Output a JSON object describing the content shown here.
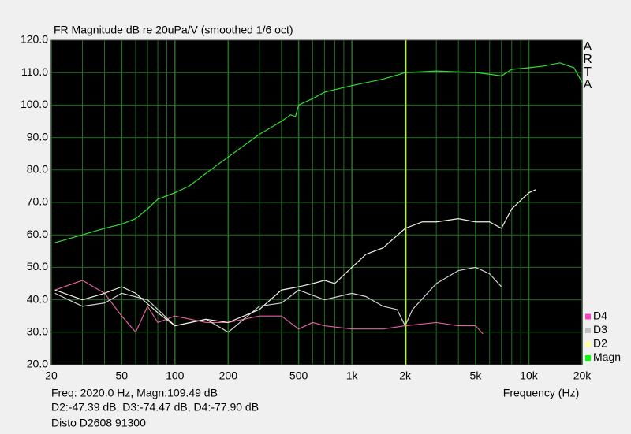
{
  "chart_data": {
    "type": "line",
    "title": "FR Magnitude dB re 20uPa/V (smoothed 1/6 oct)",
    "x_label": "Frequency (Hz)",
    "brand": "ARTA",
    "readout": [
      "Freq: 2020.0 Hz, Magn:109.49 dB",
      "D2:-47.39 dB, D3:-74.47 dB, D4:-77.90 dB",
      "Disto D2608 91300"
    ],
    "cursor": 2020,
    "cursor_color": "#c8e64a",
    "log_x": true,
    "grid": true,
    "grid_color": "#1f6f1f",
    "xlim": [
      20,
      20000
    ],
    "ylim": [
      20,
      120
    ],
    "xticks": [
      20,
      50,
      100,
      200,
      500,
      {
        "value": 1000,
        "label": "1k"
      },
      {
        "value": 2000,
        "label": "2k"
      },
      {
        "value": 5000,
        "label": "5k"
      },
      {
        "value": 10000,
        "label": "10k"
      },
      {
        "value": 20000,
        "label": "20k"
      }
    ],
    "yticks": [
      {
        "value": 20,
        "label": "20.0"
      },
      {
        "value": 30,
        "label": "30.0"
      },
      {
        "value": 40,
        "label": "40.0"
      },
      {
        "value": 50,
        "label": "50.0"
      },
      {
        "value": 60,
        "label": "60.0"
      },
      {
        "value": 70,
        "label": "70.0"
      },
      {
        "value": 80,
        "label": "80.0"
      },
      {
        "value": 90,
        "label": "90.0"
      },
      {
        "value": 100,
        "label": "100.0"
      },
      {
        "value": 110,
        "label": "110.0"
      },
      {
        "value": 120,
        "label": "120.0"
      }
    ],
    "legend": [
      {
        "name": "D4",
        "color": "#ff40c0"
      },
      {
        "name": "D3",
        "color": "#c0c0c0"
      },
      {
        "name": "D2",
        "color": "#ffffa0"
      },
      {
        "name": "Magn",
        "color": "#00ff00"
      }
    ],
    "series": [
      {
        "name": "Magn",
        "color": "#33dd33",
        "x": [
          21,
          30,
          40,
          50,
          60,
          70,
          80,
          100,
          120,
          150,
          200,
          300,
          400,
          450,
          480,
          500,
          600,
          700,
          1000,
          1500,
          2000,
          3000,
          5000,
          6000,
          7000,
          8000,
          10000,
          12000,
          15000,
          18000,
          20000
        ],
        "values": [
          57.6,
          60,
          62,
          63.3,
          65,
          68,
          71,
          73,
          75,
          79,
          84,
          91,
          95,
          97,
          96.5,
          100,
          102,
          104,
          106,
          108,
          110,
          110.5,
          110,
          109.5,
          109,
          111,
          111.5,
          112,
          113,
          111.5,
          107
        ]
      },
      {
        "name": "D2",
        "color": "#f0f0e0",
        "x": [
          21,
          30,
          40,
          50,
          60,
          80,
          100,
          150,
          200,
          300,
          400,
          500,
          600,
          700,
          800,
          1000,
          1200,
          1500,
          2000,
          2500,
          3000,
          4000,
          5000,
          6000,
          7000,
          8000,
          10000,
          11000
        ],
        "values": [
          43,
          40,
          42,
          44,
          42,
          36,
          32,
          34,
          33,
          37,
          43,
          44,
          45,
          46,
          45,
          50,
          54,
          56,
          62,
          64,
          64,
          65,
          64,
          64,
          62,
          68,
          73,
          74
        ]
      },
      {
        "name": "D3",
        "color": "#d0d0d0",
        "x": [
          21,
          30,
          40,
          50,
          70,
          100,
          150,
          200,
          300,
          400,
          500,
          700,
          1000,
          1200,
          1500,
          1800,
          2000,
          2200,
          3000,
          4000,
          5000,
          6000,
          7000
        ],
        "values": [
          42,
          38,
          39,
          42,
          40,
          32,
          34,
          30,
          38,
          39,
          43,
          40,
          42,
          41,
          38,
          37,
          32,
          37,
          45,
          49,
          50,
          48,
          44
        ]
      },
      {
        "name": "D4",
        "color": "#e060a0",
        "x": [
          21,
          30,
          40,
          50,
          60,
          70,
          80,
          100,
          150,
          200,
          300,
          400,
          500,
          600,
          700,
          1000,
          1500,
          2000,
          3000,
          4000,
          5000,
          5500
        ],
        "values": [
          43,
          46,
          42,
          35,
          30,
          38,
          33,
          35,
          33,
          33,
          35,
          35,
          31,
          33,
          32,
          31,
          31,
          32,
          33,
          32,
          32,
          29.5
        ]
      }
    ]
  }
}
